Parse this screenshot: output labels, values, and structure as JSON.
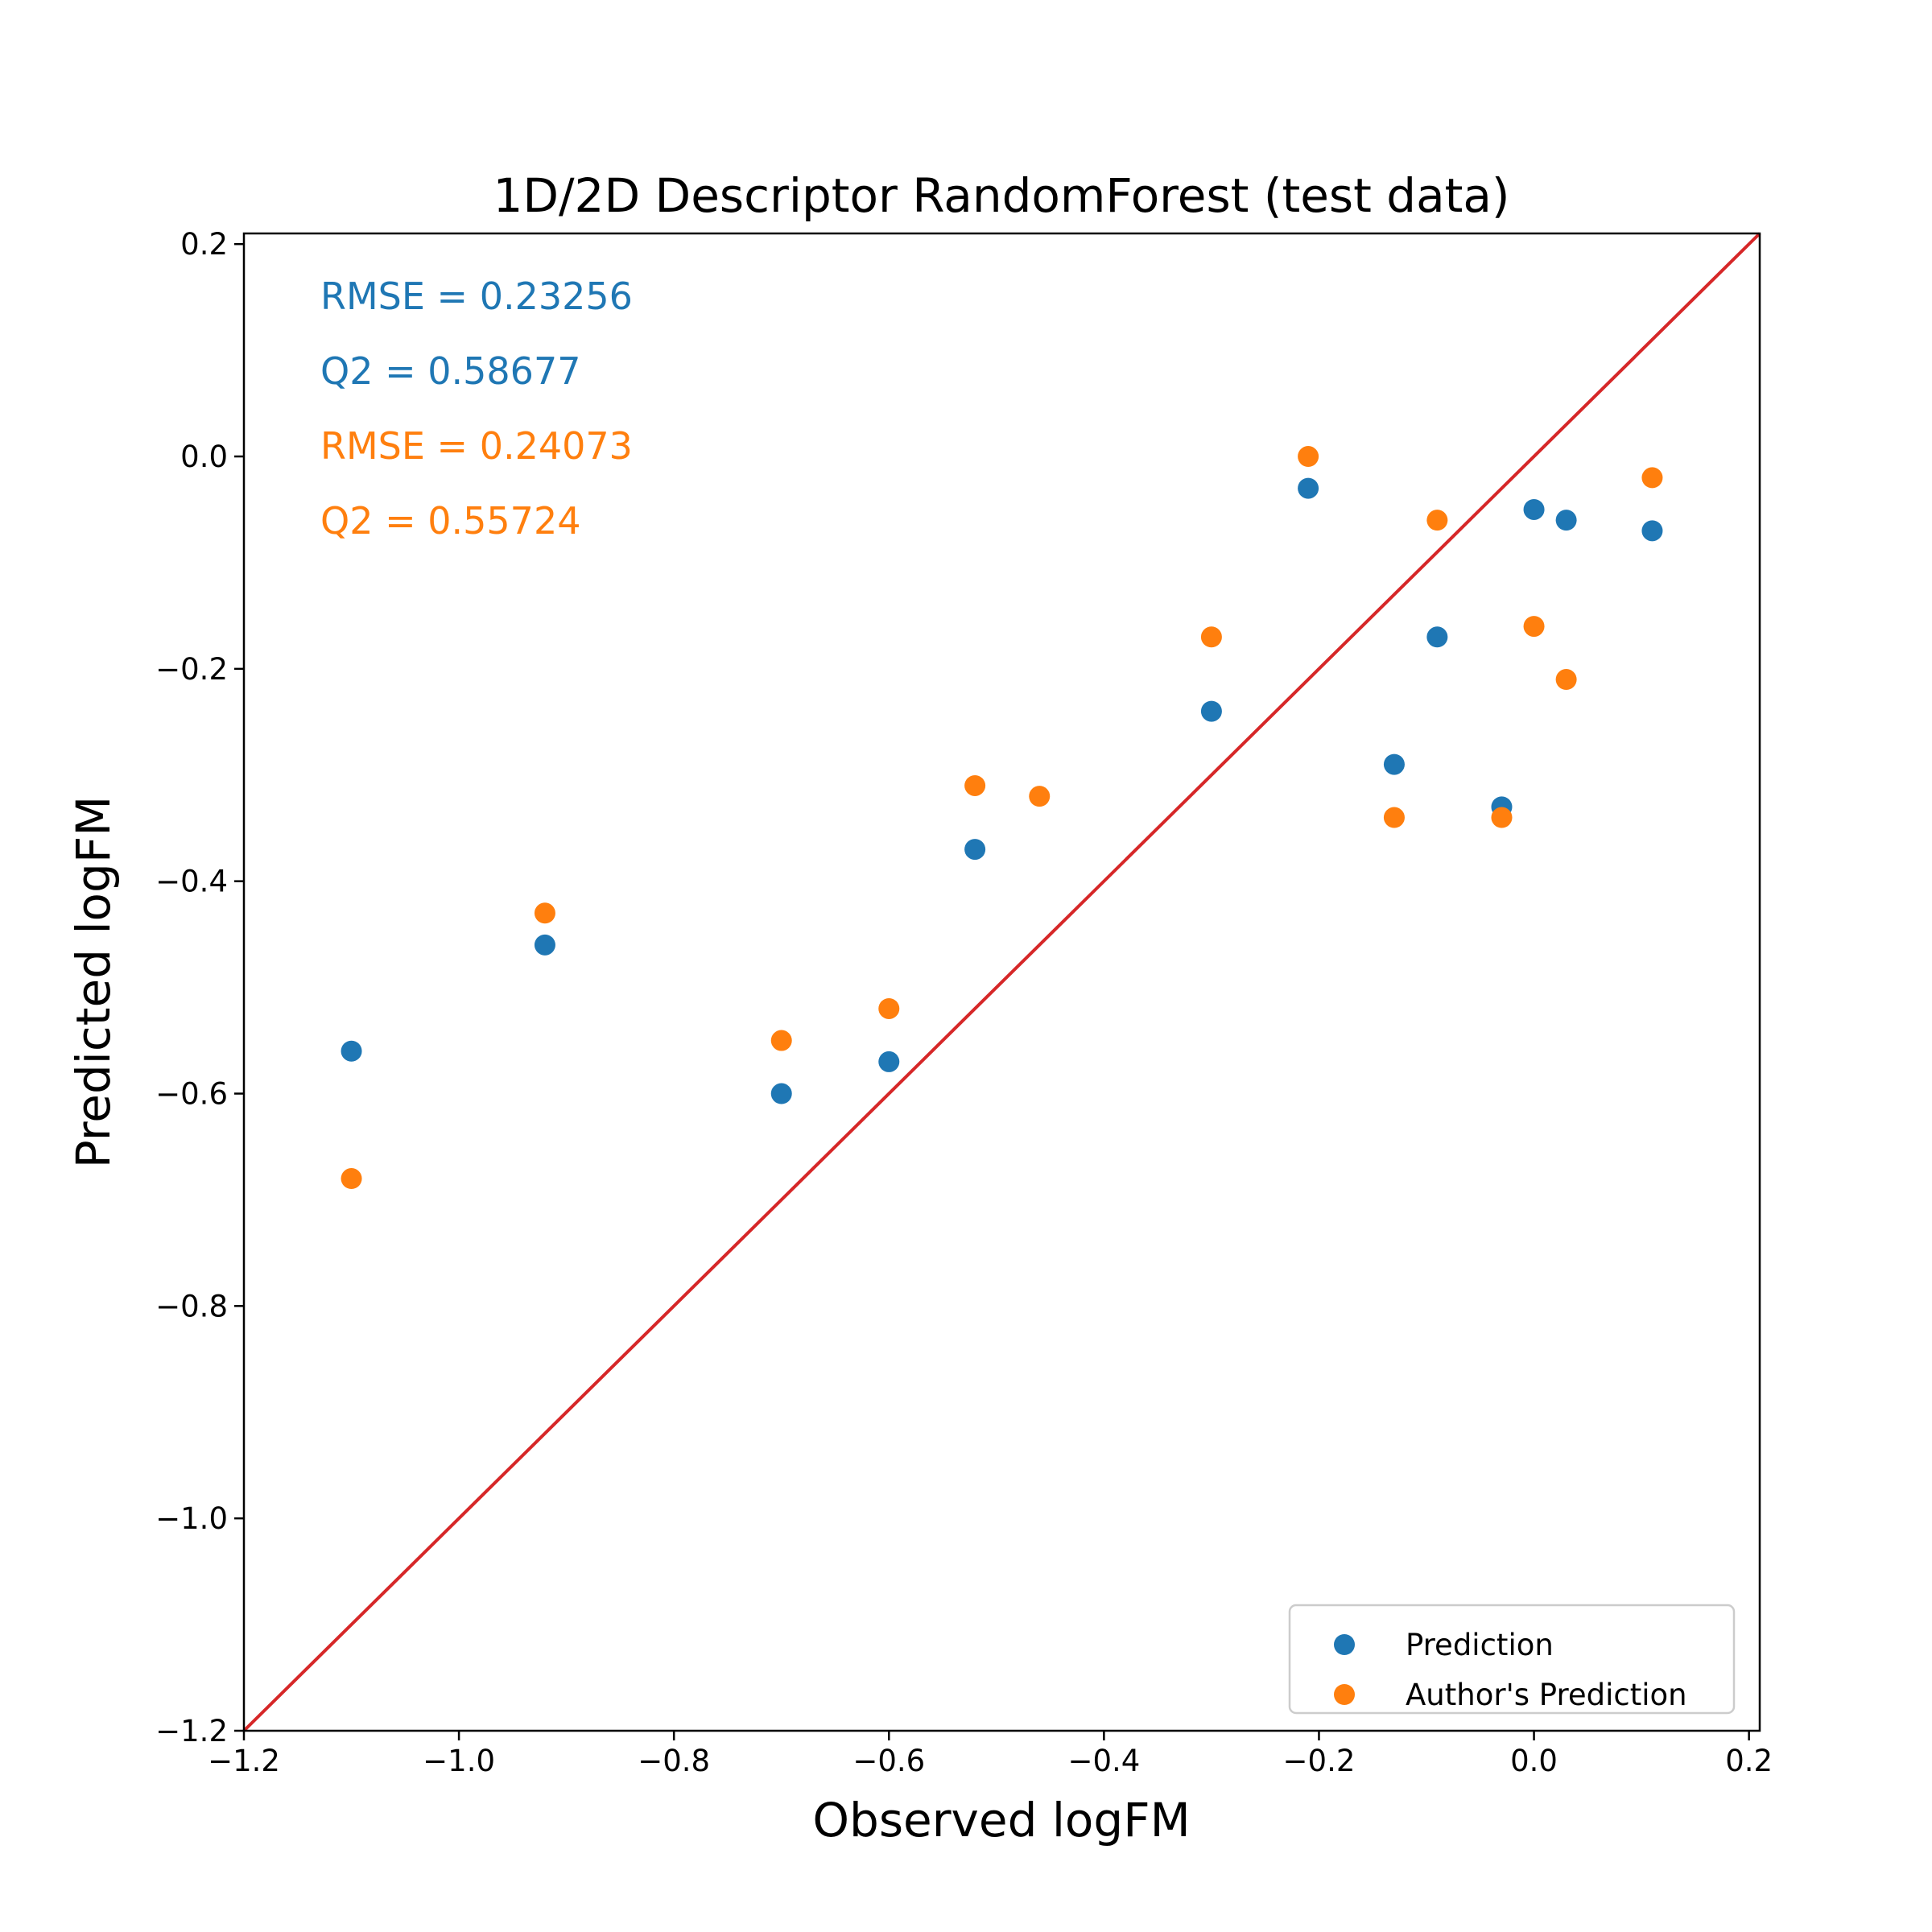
{
  "chart_data": {
    "type": "scatter",
    "title": "1D/2D Descriptor RandomForest (test data)",
    "xlabel": "Observed logFM",
    "ylabel": "Predicted logFM",
    "xlim": [
      -1.2,
      0.21
    ],
    "ylim": [
      -1.2,
      0.21
    ],
    "xticks": [
      -1.2,
      -1.0,
      -0.8,
      -0.6,
      -0.4,
      -0.2,
      0.0,
      0.2
    ],
    "yticks": [
      -1.2,
      -1.0,
      -0.8,
      -0.6,
      -0.4,
      -0.2,
      0.0,
      0.2
    ],
    "xtick_labels": [
      "−1.2",
      "−1.0",
      "−0.8",
      "−0.6",
      "−0.4",
      "−0.2",
      "0.0",
      "0.2"
    ],
    "ytick_labels": [
      "−1.2",
      "−1.0",
      "−0.8",
      "−0.6",
      "−0.4",
      "−0.2",
      "0.0",
      "0.2"
    ],
    "grid": false,
    "legend_position": "bottom-right",
    "reference_line": {
      "points": [
        [
          -1.2,
          -1.2
        ],
        [
          0.21,
          0.21
        ]
      ],
      "color": "#d62728"
    },
    "series": [
      {
        "name": "Prediction",
        "color": "#1f77b4",
        "x": [
          -1.1,
          -0.92,
          -0.7,
          -0.6,
          -0.52,
          -0.3,
          -0.21,
          -0.13,
          -0.09,
          -0.03,
          0.0,
          0.03,
          0.11
        ],
        "y": [
          -0.56,
          -0.46,
          -0.6,
          -0.57,
          -0.37,
          -0.24,
          -0.03,
          -0.29,
          -0.17,
          -0.33,
          -0.05,
          -0.06,
          -0.07
        ]
      },
      {
        "name": "Author's Prediction",
        "color": "#ff7f0e",
        "x": [
          -1.1,
          -0.92,
          -0.7,
          -0.6,
          -0.52,
          -0.46,
          -0.3,
          -0.21,
          -0.13,
          -0.09,
          -0.03,
          0.0,
          0.03,
          0.11
        ],
        "y": [
          -0.68,
          -0.43,
          -0.55,
          -0.52,
          -0.31,
          -0.32,
          -0.17,
          0.0,
          -0.34,
          -0.06,
          -0.34,
          -0.16,
          -0.21,
          -0.02
        ]
      }
    ],
    "annotations": [
      {
        "text": "RMSE = 0.23256",
        "color": "#1f77b4"
      },
      {
        "text": "Q2 = 0.58677",
        "color": "#1f77b4"
      },
      {
        "text": "RMSE = 0.24073",
        "color": "#ff7f0e"
      },
      {
        "text": "Q2 = 0.55724",
        "color": "#ff7f0e"
      }
    ]
  }
}
